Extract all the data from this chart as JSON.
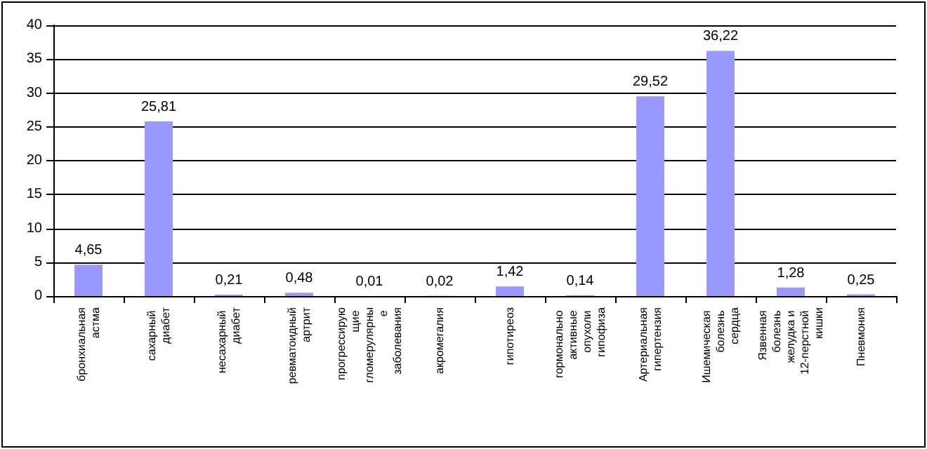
{
  "chart_data": {
    "type": "bar",
    "categories": [
      "бронхиальная астма",
      "сахарный диабет",
      "несахарный диабет",
      "ревматоидный артрит",
      "прогрессирующие гломерулярные заболевания",
      "акромегалия",
      "гипотиреоз",
      "гормонально активные опухоли гипофиза",
      "Артериальная гипертензия",
      "Ишемическая болезнь сердца",
      "Язвенная болезнь желудка и 12-перстной кишки",
      "Пневмония"
    ],
    "values": [
      4.65,
      25.81,
      0.21,
      0.48,
      0.01,
      0.02,
      1.42,
      0.14,
      29.52,
      36.22,
      1.28,
      0.25
    ],
    "value_labels": [
      "4,65",
      "25,81",
      "0,21",
      "0,48",
      "0,01",
      "0,02",
      "1,42",
      "0,14",
      "29,52",
      "36,22",
      "1,28",
      "0,25"
    ],
    "color": "#9999ff",
    "ylim": [
      0,
      40
    ],
    "yticks": [
      0,
      5,
      10,
      15,
      20,
      25,
      30,
      35,
      40
    ],
    "grid": "y"
  }
}
